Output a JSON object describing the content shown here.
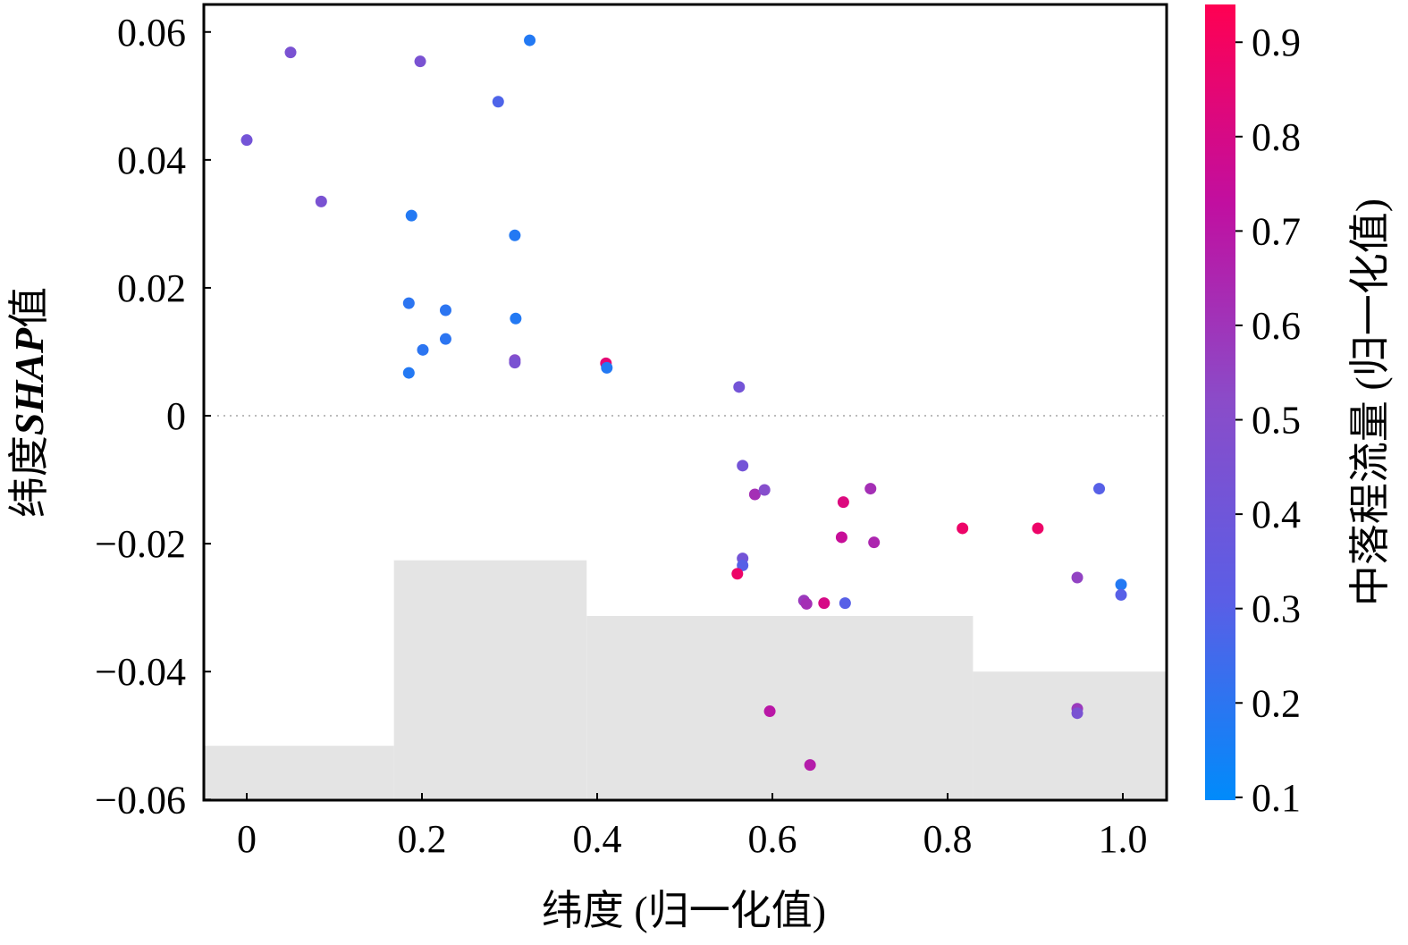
{
  "chart_data": {
    "type": "scatter",
    "title": "",
    "xlabel": "纬度 (归一化值)",
    "ylabel_prefix": "纬度",
    "ylabel_bold": "SHAP",
    "ylabel_suffix": "值",
    "xlim": [
      -0.049,
      1.05
    ],
    "ylim": [
      -0.0601,
      0.0643
    ],
    "xticks": [
      0,
      0.2,
      0.4,
      0.6,
      0.8,
      1.0
    ],
    "xtick_labels": [
      "0",
      "0.2",
      "0.4",
      "0.6",
      "0.8",
      "1.0"
    ],
    "yticks": [
      0.06,
      0.04,
      0.02,
      0,
      -0.02,
      -0.04,
      -0.06
    ],
    "ytick_labels": [
      "0.06",
      "0.04",
      "0.02",
      "0",
      "−0.02",
      "−0.04",
      "−0.06"
    ],
    "grid": false,
    "zero_line": true,
    "colorbar": {
      "label": "中落程流量 (归一化值)",
      "range": [
        0.097,
        0.94
      ],
      "ticks": [
        0.1,
        0.2,
        0.3,
        0.4,
        0.5,
        0.6,
        0.7,
        0.8,
        0.9
      ],
      "tick_labels": [
        "0.1",
        "0.2",
        "0.3",
        "0.4",
        "0.5",
        "0.6",
        "0.7",
        "0.8",
        "0.9"
      ],
      "colors": [
        "#008bfb",
        "#5a5ee6",
        "#8a4cc9",
        "#c10fa0",
        "#ff0052"
      ]
    },
    "histogram_bins": {
      "edges": [
        -0.049,
        0.168,
        0.388,
        0.829,
        1.05
      ],
      "tops": [
        -0.0516,
        -0.0226,
        -0.0313,
        -0.04
      ],
      "color": "#e4e4e4"
    },
    "points": [
      {
        "x": 0.0,
        "y": 0.0431,
        "c": 0.42
      },
      {
        "x": 0.05,
        "y": 0.0568,
        "c": 0.45
      },
      {
        "x": 0.085,
        "y": 0.0335,
        "c": 0.45
      },
      {
        "x": 0.198,
        "y": 0.0554,
        "c": 0.45
      },
      {
        "x": 0.323,
        "y": 0.0587,
        "c": 0.18
      },
      {
        "x": 0.287,
        "y": 0.0491,
        "c": 0.28
      },
      {
        "x": 0.188,
        "y": 0.0313,
        "c": 0.18
      },
      {
        "x": 0.306,
        "y": 0.0282,
        "c": 0.18
      },
      {
        "x": 0.185,
        "y": 0.0176,
        "c": 0.2
      },
      {
        "x": 0.227,
        "y": 0.0165,
        "c": 0.2
      },
      {
        "x": 0.307,
        "y": 0.0152,
        "c": 0.18
      },
      {
        "x": 0.201,
        "y": 0.0103,
        "c": 0.2
      },
      {
        "x": 0.227,
        "y": 0.012,
        "c": 0.2
      },
      {
        "x": 0.185,
        "y": 0.0067,
        "c": 0.18
      },
      {
        "x": 0.306,
        "y": 0.0087,
        "c": 0.5
      },
      {
        "x": 0.306,
        "y": 0.0083,
        "c": 0.45
      },
      {
        "x": 0.41,
        "y": 0.0082,
        "c": 0.85
      },
      {
        "x": 0.411,
        "y": 0.0075,
        "c": 0.18
      },
      {
        "x": 0.562,
        "y": 0.0045,
        "c": 0.42
      },
      {
        "x": 0.566,
        "y": -0.0078,
        "c": 0.42
      },
      {
        "x": 0.58,
        "y": -0.0123,
        "c": 0.62
      },
      {
        "x": 0.591,
        "y": -0.0116,
        "c": 0.5
      },
      {
        "x": 0.681,
        "y": -0.0135,
        "c": 0.82
      },
      {
        "x": 0.712,
        "y": -0.0114,
        "c": 0.62
      },
      {
        "x": 0.679,
        "y": -0.019,
        "c": 0.75
      },
      {
        "x": 0.716,
        "y": -0.0198,
        "c": 0.65
      },
      {
        "x": 0.817,
        "y": -0.0176,
        "c": 0.88
      },
      {
        "x": 0.903,
        "y": -0.0176,
        "c": 0.88
      },
      {
        "x": 0.973,
        "y": -0.0114,
        "c": 0.3
      },
      {
        "x": 0.566,
        "y": -0.0223,
        "c": 0.42
      },
      {
        "x": 0.566,
        "y": -0.0234,
        "c": 0.3
      },
      {
        "x": 0.56,
        "y": -0.0247,
        "c": 0.88
      },
      {
        "x": 0.636,
        "y": -0.0289,
        "c": 0.58
      },
      {
        "x": 0.639,
        "y": -0.0294,
        "c": 0.62
      },
      {
        "x": 0.659,
        "y": -0.0293,
        "c": 0.8
      },
      {
        "x": 0.683,
        "y": -0.0293,
        "c": 0.3
      },
      {
        "x": 0.948,
        "y": -0.0253,
        "c": 0.55
      },
      {
        "x": 0.998,
        "y": -0.0264,
        "c": 0.18
      },
      {
        "x": 0.998,
        "y": -0.028,
        "c": 0.3
      },
      {
        "x": 0.597,
        "y": -0.0462,
        "c": 0.7
      },
      {
        "x": 0.948,
        "y": -0.0458,
        "c": 0.58
      },
      {
        "x": 0.948,
        "y": -0.0465,
        "c": 0.45
      },
      {
        "x": 0.643,
        "y": -0.0546,
        "c": 0.68
      }
    ]
  }
}
